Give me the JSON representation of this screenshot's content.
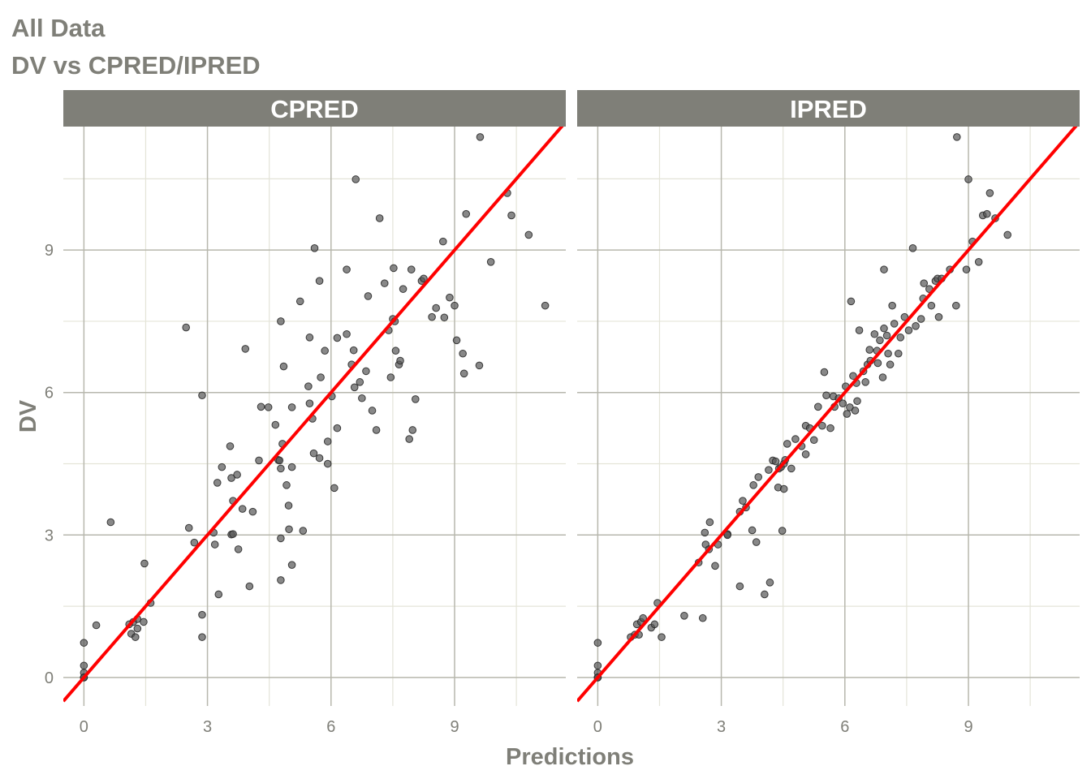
{
  "chart_data": {
    "type": "scatter",
    "title": "All Data",
    "subtitle": "DV vs CPRED/IPRED",
    "xlabel": "Predictions",
    "ylabel": "DV",
    "xlim": [
      -0.5,
      11.7
    ],
    "ylim": [
      -0.6,
      11.6
    ],
    "x_ticks": [
      0,
      3,
      6,
      9
    ],
    "y_ticks": [
      0,
      3,
      6,
      9
    ],
    "grid": true,
    "reference_line": {
      "slope": 1,
      "intercept": 0,
      "color": "#ff0000"
    },
    "colors": {
      "strip_bg": "#7f7f78",
      "grid_major": "#b7b7ad",
      "grid_minor": "#e4e4d8",
      "point": "#555555",
      "line": "#ff0000"
    },
    "panels": [
      {
        "name": "CPRED",
        "points": [
          [
            0,
            0.73
          ],
          [
            0,
            0.25
          ],
          [
            0,
            0.1
          ],
          [
            0,
            0
          ],
          [
            0,
            0
          ],
          [
            0,
            0
          ],
          [
            0.3,
            1.1
          ],
          [
            0.65,
            3.27
          ],
          [
            1.1,
            1.12
          ],
          [
            1.15,
            0.92
          ],
          [
            1.2,
            1.17
          ],
          [
            1.25,
            0.85
          ],
          [
            1.3,
            1.23
          ],
          [
            1.3,
            1.03
          ],
          [
            1.45,
            1.17
          ],
          [
            1.47,
            2.4
          ],
          [
            1.62,
            1.57
          ],
          [
            2.48,
            7.37
          ],
          [
            2.55,
            3.15
          ],
          [
            2.68,
            2.84
          ],
          [
            2.87,
            5.94
          ],
          [
            2.87,
            1.32
          ],
          [
            2.87,
            0.85
          ],
          [
            3.15,
            3.05
          ],
          [
            3.18,
            2.8
          ],
          [
            3.24,
            4.1
          ],
          [
            3.27,
            1.75
          ],
          [
            3.35,
            4.43
          ],
          [
            3.55,
            4.87
          ],
          [
            3.58,
            3.01
          ],
          [
            3.58,
            4.2
          ],
          [
            3.62,
            3.02
          ],
          [
            3.62,
            3.72
          ],
          [
            3.72,
            4.27
          ],
          [
            3.75,
            2.7
          ],
          [
            3.85,
            3.55
          ],
          [
            3.92,
            6.92
          ],
          [
            4.02,
            1.92
          ],
          [
            4.1,
            3.49
          ],
          [
            4.25,
            4.57
          ],
          [
            4.3,
            5.7
          ],
          [
            4.48,
            5.69
          ],
          [
            4.65,
            5.32
          ],
          [
            4.72,
            4.58
          ],
          [
            4.75,
            4.57
          ],
          [
            4.78,
            2.93
          ],
          [
            4.78,
            2.05
          ],
          [
            4.78,
            4.4
          ],
          [
            4.78,
            7.5
          ],
          [
            4.82,
            4.92
          ],
          [
            4.85,
            6.55
          ],
          [
            4.92,
            4.05
          ],
          [
            4.97,
            3.62
          ],
          [
            4.98,
            3.12
          ],
          [
            5.05,
            2.37
          ],
          [
            5.05,
            5.69
          ],
          [
            5.05,
            4.43
          ],
          [
            5.25,
            7.92
          ],
          [
            5.32,
            3.09
          ],
          [
            5.45,
            6.13
          ],
          [
            5.48,
            5.77
          ],
          [
            5.48,
            7.16
          ],
          [
            5.55,
            5.45
          ],
          [
            5.58,
            4.72
          ],
          [
            5.6,
            9.04
          ],
          [
            5.72,
            8.35
          ],
          [
            5.72,
            4.62
          ],
          [
            5.75,
            6.32
          ],
          [
            5.85,
            6.88
          ],
          [
            5.92,
            4.5
          ],
          [
            5.92,
            4.97
          ],
          [
            6.02,
            5.92
          ],
          [
            6.08,
            3.99
          ],
          [
            6.15,
            5.25
          ],
          [
            6.15,
            7.15
          ],
          [
            6.38,
            8.59
          ],
          [
            6.38,
            7.23
          ],
          [
            6.5,
            6.59
          ],
          [
            6.55,
            6.89
          ],
          [
            6.57,
            6.11
          ],
          [
            6.6,
            10.49
          ],
          [
            6.7,
            6.22
          ],
          [
            6.75,
            5.88
          ],
          [
            6.85,
            6.45
          ],
          [
            6.9,
            8.03
          ],
          [
            7.0,
            5.62
          ],
          [
            7.1,
            5.21
          ],
          [
            7.18,
            9.67
          ],
          [
            7.3,
            8.3
          ],
          [
            7.4,
            7.31
          ],
          [
            7.45,
            6.32
          ],
          [
            7.5,
            7.55
          ],
          [
            7.52,
            8.62
          ],
          [
            7.55,
            7.5
          ],
          [
            7.57,
            6.88
          ],
          [
            7.65,
            6.59
          ],
          [
            7.68,
            6.67
          ],
          [
            7.75,
            8.18
          ],
          [
            7.9,
            5.02
          ],
          [
            7.95,
            8.59
          ],
          [
            7.98,
            5.21
          ],
          [
            8.05,
            5.86
          ],
          [
            8.2,
            8.35
          ],
          [
            8.25,
            8.4
          ],
          [
            8.45,
            7.59
          ],
          [
            8.55,
            7.78
          ],
          [
            8.72,
            9.18
          ],
          [
            8.75,
            7.58
          ],
          [
            8.88,
            8.0
          ],
          [
            9.0,
            7.83
          ],
          [
            9.05,
            7.1
          ],
          [
            9.2,
            6.82
          ],
          [
            9.23,
            6.4
          ],
          [
            9.28,
            9.76
          ],
          [
            9.6,
            6.57
          ],
          [
            9.62,
            11.38
          ],
          [
            9.88,
            8.75
          ],
          [
            10.28,
            10.2
          ],
          [
            10.38,
            9.73
          ],
          [
            10.8,
            9.32
          ],
          [
            11.2,
            7.83
          ]
        ]
      },
      {
        "name": "IPRED",
        "points": [
          [
            0,
            0.73
          ],
          [
            0,
            0.25
          ],
          [
            0,
            0.1
          ],
          [
            0,
            0
          ],
          [
            0,
            0
          ],
          [
            0,
            0
          ],
          [
            0.8,
            0.85
          ],
          [
            0.9,
            0.9
          ],
          [
            0.95,
            1.12
          ],
          [
            1.0,
            0.9
          ],
          [
            1.05,
            1.17
          ],
          [
            1.1,
            1.25
          ],
          [
            1.3,
            1.05
          ],
          [
            1.38,
            1.12
          ],
          [
            1.45,
            1.57
          ],
          [
            1.55,
            0.85
          ],
          [
            2.1,
            1.3
          ],
          [
            2.45,
            2.42
          ],
          [
            2.55,
            1.25
          ],
          [
            2.6,
            3.05
          ],
          [
            2.62,
            2.8
          ],
          [
            2.7,
            2.7
          ],
          [
            2.72,
            3.27
          ],
          [
            2.85,
            2.35
          ],
          [
            2.92,
            2.8
          ],
          [
            3.15,
            3.02
          ],
          [
            3.15,
            3.0
          ],
          [
            3.45,
            1.92
          ],
          [
            3.45,
            3.49
          ],
          [
            3.52,
            3.72
          ],
          [
            3.6,
            3.58
          ],
          [
            3.75,
            3.1
          ],
          [
            3.78,
            4.05
          ],
          [
            3.85,
            2.85
          ],
          [
            3.9,
            4.22
          ],
          [
            4.05,
            1.75
          ],
          [
            4.15,
            4.37
          ],
          [
            4.18,
            2.0
          ],
          [
            4.25,
            4.57
          ],
          [
            4.32,
            4.55
          ],
          [
            4.38,
            4.0
          ],
          [
            4.4,
            4.4
          ],
          [
            4.45,
            4.43
          ],
          [
            4.48,
            3.09
          ],
          [
            4.52,
            4.5
          ],
          [
            4.52,
            3.97
          ],
          [
            4.55,
            4.58
          ],
          [
            4.6,
            4.92
          ],
          [
            4.7,
            4.4
          ],
          [
            4.8,
            5.02
          ],
          [
            4.95,
            4.87
          ],
          [
            5.05,
            5.3
          ],
          [
            5.05,
            4.7
          ],
          [
            5.15,
            5.25
          ],
          [
            5.25,
            5.0
          ],
          [
            5.35,
            5.7
          ],
          [
            5.45,
            5.3
          ],
          [
            5.5,
            6.43
          ],
          [
            5.55,
            5.94
          ],
          [
            5.65,
            5.25
          ],
          [
            5.72,
            5.92
          ],
          [
            5.75,
            5.7
          ],
          [
            5.85,
            5.88
          ],
          [
            5.95,
            5.77
          ],
          [
            6.02,
            6.13
          ],
          [
            6.05,
            5.55
          ],
          [
            6.12,
            5.69
          ],
          [
            6.15,
            7.92
          ],
          [
            6.2,
            6.35
          ],
          [
            6.25,
            5.62
          ],
          [
            6.28,
            6.2
          ],
          [
            6.3,
            5.82
          ],
          [
            6.35,
            7.31
          ],
          [
            6.45,
            6.45
          ],
          [
            6.5,
            6.22
          ],
          [
            6.55,
            6.59
          ],
          [
            6.6,
            6.9
          ],
          [
            6.62,
            6.67
          ],
          [
            6.72,
            7.23
          ],
          [
            6.78,
            6.88
          ],
          [
            6.8,
            6.62
          ],
          [
            6.85,
            7.1
          ],
          [
            6.92,
            6.32
          ],
          [
            6.95,
            7.35
          ],
          [
            6.95,
            8.59
          ],
          [
            7.02,
            7.2
          ],
          [
            7.05,
            6.82
          ],
          [
            7.1,
            6.59
          ],
          [
            7.15,
            7.83
          ],
          [
            7.2,
            7.45
          ],
          [
            7.3,
            6.82
          ],
          [
            7.35,
            7.16
          ],
          [
            7.45,
            7.59
          ],
          [
            7.55,
            7.31
          ],
          [
            7.65,
            9.04
          ],
          [
            7.72,
            7.4
          ],
          [
            7.85,
            7.55
          ],
          [
            7.9,
            7.98
          ],
          [
            7.92,
            8.3
          ],
          [
            8.05,
            8.18
          ],
          [
            8.1,
            7.83
          ],
          [
            8.2,
            8.35
          ],
          [
            8.25,
            8.4
          ],
          [
            8.28,
            7.59
          ],
          [
            8.35,
            8.4
          ],
          [
            8.55,
            8.59
          ],
          [
            8.7,
            7.83
          ],
          [
            8.72,
            11.38
          ],
          [
            8.95,
            8.59
          ],
          [
            9.0,
            10.49
          ],
          [
            9.1,
            9.18
          ],
          [
            9.25,
            8.75
          ],
          [
            9.35,
            9.73
          ],
          [
            9.45,
            9.76
          ],
          [
            9.52,
            10.2
          ],
          [
            9.65,
            9.67
          ],
          [
            9.95,
            9.32
          ]
        ]
      }
    ]
  }
}
